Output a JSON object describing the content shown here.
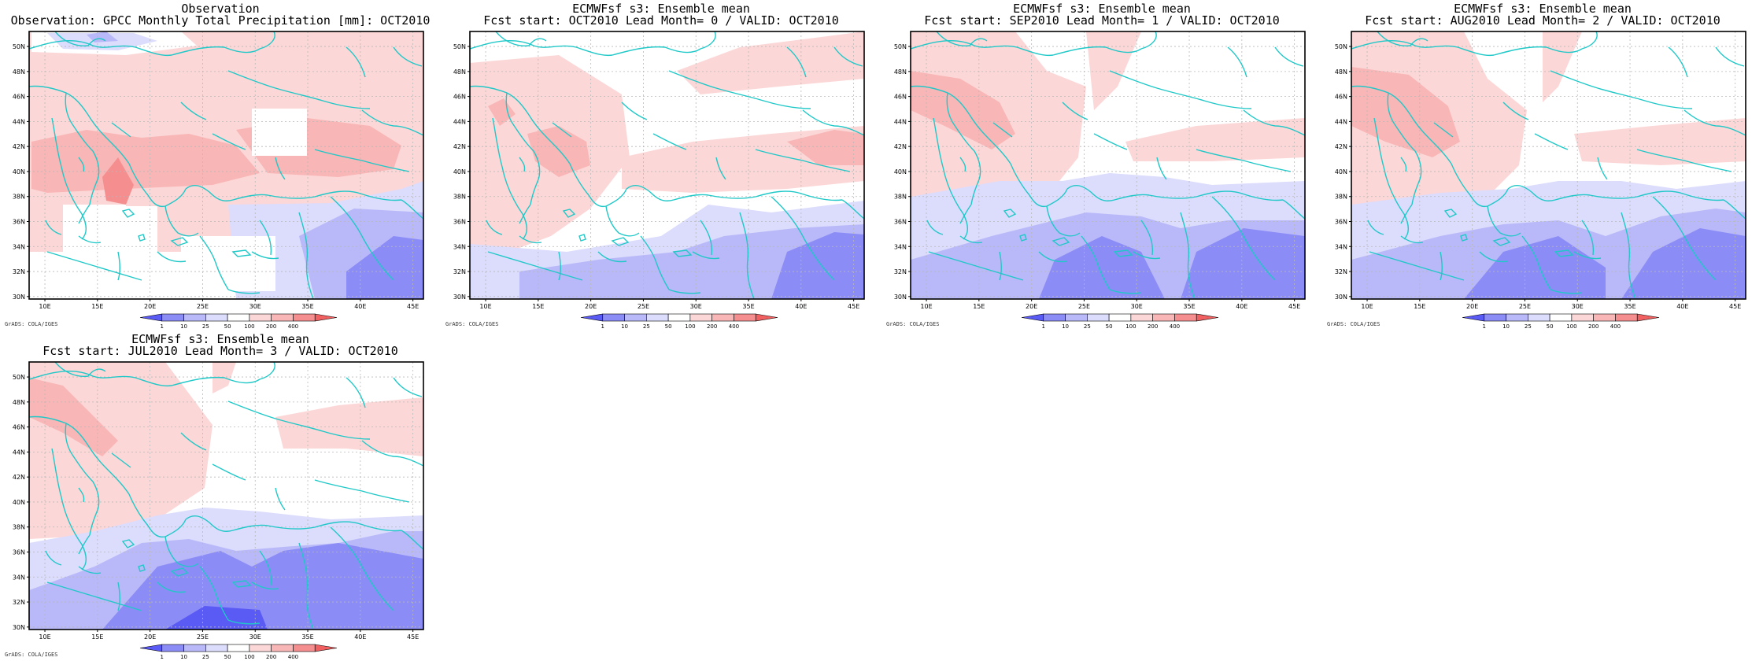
{
  "panels": [
    {
      "title1": "Observation",
      "title2": "Observation: GPCC Monthly Total Precipitation [mm]: OCT2010",
      "pattern": "obs",
      "missing_data_boxes": true
    },
    {
      "title1": "ECMWFsf s3: Ensemble mean",
      "title2": "Fcst start: OCT2010  Lead Month= 0 / VALID: OCT2010",
      "pattern": "lead0"
    },
    {
      "title1": "ECMWFsf s3: Ensemble mean",
      "title2": "Fcst start: SEP2010  Lead Month= 1 / VALID: OCT2010",
      "pattern": "lead1"
    },
    {
      "title1": "ECMWFsf s3: Ensemble mean",
      "title2": "Fcst start: AUG2010  Lead Month= 2 / VALID: OCT2010",
      "pattern": "lead2"
    },
    {
      "title1": "ECMWFsf s3: Ensemble mean",
      "title2": "Fcst start: JUL2010  Lead Month= 3 / VALID: OCT2010",
      "pattern": "lead3"
    }
  ],
  "map": {
    "lon_labels": [
      "10E",
      "15E",
      "20E",
      "25E",
      "30E",
      "35E",
      "40E",
      "45E"
    ],
    "lon_values": [
      10,
      15,
      20,
      25,
      30,
      35,
      40,
      45
    ],
    "lat_labels": [
      "30N",
      "32N",
      "34N",
      "36N",
      "38N",
      "40N",
      "42N",
      "44N",
      "46N",
      "48N",
      "50N"
    ],
    "lat_values": [
      30,
      32,
      34,
      36,
      38,
      40,
      42,
      44,
      46,
      48,
      50
    ],
    "lon_range": [
      8.5,
      46
    ],
    "lat_range": [
      29.8,
      51.2
    ],
    "coastline_color": "#20c8c8",
    "grid": true
  },
  "colorbar": {
    "labels": [
      "1",
      "10",
      "25",
      "50",
      "100",
      "200",
      "400"
    ],
    "colors": [
      "#5a5af5",
      "#8c8cf7",
      "#b9b9f9",
      "#dcdcfc",
      "#ffffff",
      "#fcd7d7",
      "#f9b6b6",
      "#f58f8f",
      "#f06060"
    ]
  },
  "credit": "GrADS: COLA/IGES"
}
